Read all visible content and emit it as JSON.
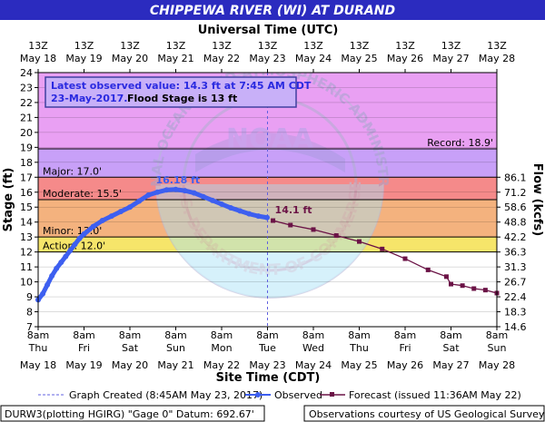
{
  "colors": {
    "title_bg": "#2b2bbf",
    "record": "#e9a0f3",
    "major": "#c8a0f8",
    "major_band": "#f58a8a",
    "moderate_band": "#f4b27e",
    "minor_band": "#f6e56a",
    "action_band": "#fcfcb4",
    "normal": "#ffffff",
    "observed": "#3d5ff0",
    "forecast": "#6b1346",
    "created_line": "#6060e0",
    "box_bg": "#c8b0f8",
    "box_text": "#2a2ae0"
  },
  "chart_data": {
    "type": "line",
    "title": "CHIPPEWA RIVER (WI) AT DURAND",
    "top_axis_title": "Universal Time (UTC)",
    "xlabel": "Site Time (CDT)",
    "ylabel": "Stage (ft)",
    "y2label": "Flow (kcfs)",
    "ylim": [
      7,
      24
    ],
    "xlim": [
      0,
      10
    ],
    "yticks": [
      "7",
      "8",
      "9",
      "10",
      "11",
      "12",
      "13",
      "14",
      "15",
      "16",
      "17",
      "18",
      "19",
      "20",
      "21",
      "22",
      "23",
      "24"
    ],
    "y2_ticks": [
      {
        "stage": 7.0,
        "label": "14.6"
      },
      {
        "stage": 8.0,
        "label": "18.3"
      },
      {
        "stage": 9.0,
        "label": "22.4"
      },
      {
        "stage": 10.0,
        "label": "26.7"
      },
      {
        "stage": 11.0,
        "label": "31.3"
      },
      {
        "stage": 12.0,
        "label": "36.3"
      },
      {
        "stage": 13.0,
        "label": "42.2"
      },
      {
        "stage": 14.0,
        "label": "48.8"
      },
      {
        "stage": 15.0,
        "label": "58.6"
      },
      {
        "stage": 16.0,
        "label": "71.2"
      },
      {
        "stage": 17.0,
        "label": "86.1"
      }
    ],
    "top_ticks": [
      {
        "hour": "13Z",
        "date": "May 18"
      },
      {
        "hour": "13Z",
        "date": "May 19"
      },
      {
        "hour": "13Z",
        "date": "May 20"
      },
      {
        "hour": "13Z",
        "date": "May 21"
      },
      {
        "hour": "13Z",
        "date": "May 22"
      },
      {
        "hour": "13Z",
        "date": "May 23"
      },
      {
        "hour": "13Z",
        "date": "May 24"
      },
      {
        "hour": "13Z",
        "date": "May 25"
      },
      {
        "hour": "13Z",
        "date": "May 26"
      },
      {
        "hour": "13Z",
        "date": "May 27"
      },
      {
        "hour": "13Z",
        "date": "May 28"
      }
    ],
    "bottom_ticks": [
      {
        "time": "8am",
        "day": "Thu",
        "date": "May 18"
      },
      {
        "time": "8am",
        "day": "Fri",
        "date": "May 19"
      },
      {
        "time": "8am",
        "day": "Sat",
        "date": "May 20"
      },
      {
        "time": "8am",
        "day": "Sun",
        "date": "May 21"
      },
      {
        "time": "8am",
        "day": "Mon",
        "date": "May 22"
      },
      {
        "time": "8am",
        "day": "Tue",
        "date": "May 23"
      },
      {
        "time": "8am",
        "day": "Wed",
        "date": "May 24"
      },
      {
        "time": "8am",
        "day": "Thu",
        "date": "May 25"
      },
      {
        "time": "8am",
        "day": "Fri",
        "date": "May 26"
      },
      {
        "time": "8am",
        "day": "Sat",
        "date": "May 27"
      },
      {
        "time": "8am",
        "day": "Sun",
        "date": "May 28"
      }
    ],
    "flood_levels": [
      {
        "name": "Record",
        "label": "Record: 18.9'",
        "stage": 18.9
      },
      {
        "name": "Major",
        "label": "Major: 17.0'",
        "stage": 17.0
      },
      {
        "name": "Moderate",
        "label": "Moderate: 15.5'",
        "stage": 15.5
      },
      {
        "name": "Minor",
        "label": "Minor: 13.0'",
        "stage": 13.0
      },
      {
        "name": "Action",
        "label": "Action: 12.0'",
        "stage": 12.0
      }
    ],
    "series": [
      {
        "name": "Observed",
        "x": [
          0.0,
          0.1,
          0.2,
          0.3,
          0.4,
          0.5,
          0.6,
          0.7,
          0.8,
          0.9,
          1.0,
          1.2,
          1.4,
          1.6,
          1.8,
          2.0,
          2.2,
          2.4,
          2.6,
          2.8,
          3.0,
          3.2,
          3.4,
          3.6,
          3.8,
          4.0,
          4.2,
          4.4,
          4.6,
          4.8,
          4.99
        ],
        "y": [
          8.8,
          9.2,
          9.8,
          10.4,
          10.9,
          11.3,
          11.7,
          12.1,
          12.5,
          12.9,
          13.2,
          13.7,
          14.1,
          14.4,
          14.7,
          15.0,
          15.4,
          15.8,
          16.0,
          16.15,
          16.18,
          16.1,
          15.95,
          15.7,
          15.45,
          15.2,
          14.95,
          14.75,
          14.55,
          14.4,
          14.3
        ]
      },
      {
        "name": "Forecast",
        "x": [
          5.12,
          5.5,
          6.0,
          6.5,
          7.0,
          7.5,
          8.0,
          8.5,
          8.9,
          9.0,
          9.25,
          9.5,
          9.75,
          10.0
        ],
        "y": [
          14.1,
          13.8,
          13.5,
          13.1,
          12.7,
          12.2,
          11.55,
          10.8,
          10.35,
          9.85,
          9.75,
          9.55,
          9.45,
          9.25
        ]
      }
    ],
    "graph_created_x": 5.0,
    "annotations": {
      "peak_label": "16.18 ft",
      "peak_x": 3.0,
      "peak_y": 16.18,
      "forecast_label": "14.1 ft",
      "forecast_x": 5.12,
      "forecast_y": 14.1
    },
    "info_box": {
      "line1": "Latest observed value: 14.3 ft at 7:45 AM CDT",
      "line2_date": "23-May-2017.",
      "line2_flood": "Flood Stage is 13 ft"
    },
    "legend": {
      "created": "Graph Created (8:45AM May 23, 2017)",
      "observed": "Observed",
      "forecast": "Forecast (issued 11:36AM May 22)"
    },
    "footer": {
      "left": "DURW3(plotting HGIRG) \"Gage 0\" Datum: 692.67'",
      "right": "Observations courtesy of US Geological Survey"
    },
    "watermark": {
      "top": "NATIONAL OCEANIC AND ATMOSPHERIC ADMINISTRATION",
      "bottom": "U.S. DEPARTMENT OF COMMERCE",
      "center": "NOAA"
    }
  }
}
